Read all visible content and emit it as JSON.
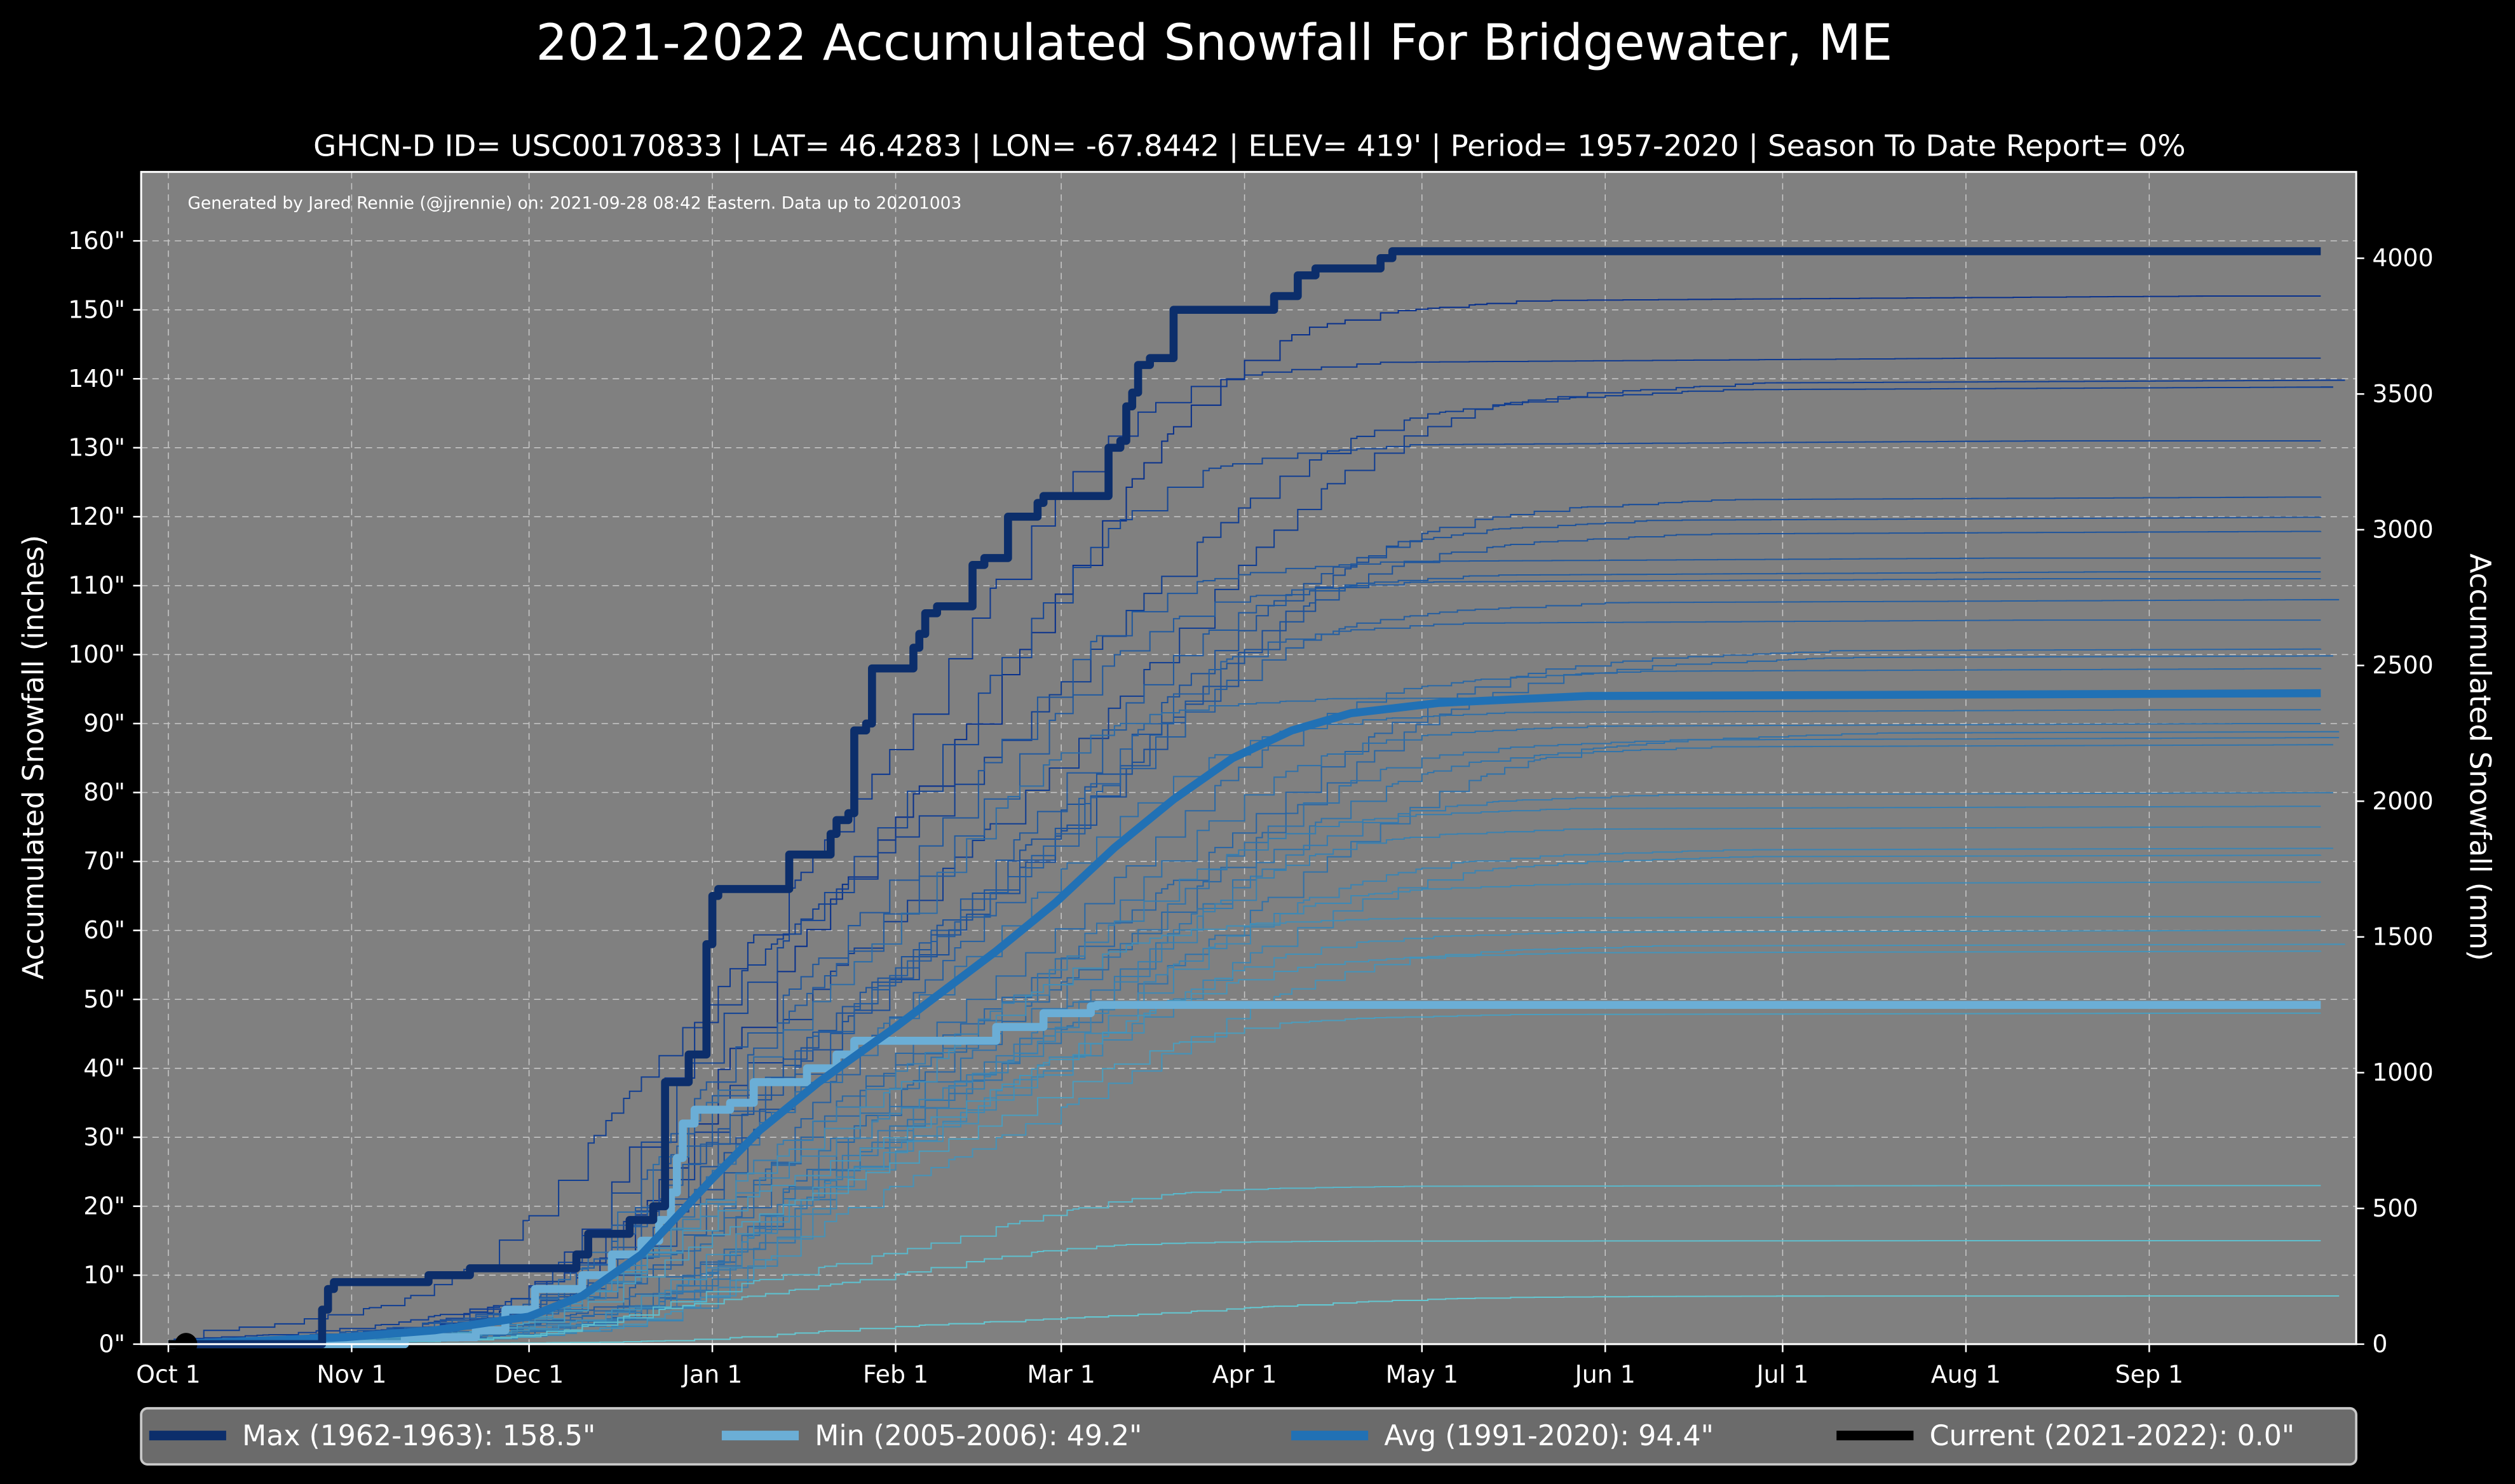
{
  "chart_data": {
    "type": "line",
    "title": "2021-2022 Accumulated Snowfall For Bridgewater, ME",
    "subtitle": "GHCN-D ID= USC00170833 | LAT= 46.4283 | LON= -67.8442 | ELEV= 419' | Period= 1957-2020 | Season To Date Report= 0%",
    "annotation": "Generated by Jared Rennie (@jjrennie) on: 2021-09-28 08:42 Eastern. Data up to 20201003",
    "ylabel": "Accumulated Snowfall (inches)",
    "ylabel_right": "Accumulated Snowfall (mm)",
    "x_unit": "days since Oct 1",
    "xlim": [
      -4.6,
      370
    ],
    "ylim": [
      0,
      170
    ],
    "ylim_right_mm": [
      0,
      4318
    ],
    "grid": true,
    "legend_position": "bottom",
    "x_ticks": [
      {
        "day": 0,
        "label": "Oct 1"
      },
      {
        "day": 31,
        "label": "Nov 1"
      },
      {
        "day": 61,
        "label": "Dec 1"
      },
      {
        "day": 92,
        "label": "Jan 1"
      },
      {
        "day": 123,
        "label": "Feb 1"
      },
      {
        "day": 151,
        "label": "Mar 1"
      },
      {
        "day": 182,
        "label": "Apr 1"
      },
      {
        "day": 212,
        "label": "May 1"
      },
      {
        "day": 243,
        "label": "Jun 1"
      },
      {
        "day": 273,
        "label": "Jul 1"
      },
      {
        "day": 304,
        "label": "Aug 1"
      },
      {
        "day": 335,
        "label": "Sep 1"
      }
    ],
    "y_ticks": [
      {
        "v": 0,
        "label": "0\""
      },
      {
        "v": 10,
        "label": "10\""
      },
      {
        "v": 20,
        "label": "20\""
      },
      {
        "v": 30,
        "label": "30\""
      },
      {
        "v": 40,
        "label": "40\""
      },
      {
        "v": 50,
        "label": "50\""
      },
      {
        "v": 60,
        "label": "60\""
      },
      {
        "v": 70,
        "label": "70\""
      },
      {
        "v": 80,
        "label": "80\""
      },
      {
        "v": 90,
        "label": "90\""
      },
      {
        "v": 100,
        "label": "100\""
      },
      {
        "v": 110,
        "label": "110\""
      },
      {
        "v": 120,
        "label": "120\""
      },
      {
        "v": 130,
        "label": "130\""
      },
      {
        "v": 140,
        "label": "140\""
      },
      {
        "v": 150,
        "label": "150\""
      },
      {
        "v": 160,
        "label": "160\""
      }
    ],
    "y_ticks_right": [
      {
        "mm": 0,
        "label": "0"
      },
      {
        "mm": 500,
        "label": "500"
      },
      {
        "mm": 1000,
        "label": "1000"
      },
      {
        "mm": 1500,
        "label": "1500"
      },
      {
        "mm": 2000,
        "label": "2000"
      },
      {
        "mm": 2500,
        "label": "2500"
      },
      {
        "mm": 3000,
        "label": "3000"
      },
      {
        "mm": 3500,
        "label": "3500"
      },
      {
        "mm": 4000,
        "label": "4000"
      }
    ],
    "series": [
      {
        "name": "Max (1962-1963):  158.5\"",
        "color": "#0c2e6b",
        "width": 5,
        "step": true,
        "points": [
          [
            0,
            0
          ],
          [
            25,
            0
          ],
          [
            26,
            5
          ],
          [
            27,
            8
          ],
          [
            28,
            9
          ],
          [
            43,
            9
          ],
          [
            44,
            10
          ],
          [
            50,
            10
          ],
          [
            51,
            11
          ],
          [
            68,
            11
          ],
          [
            69,
            13
          ],
          [
            71,
            16
          ],
          [
            76,
            16
          ],
          [
            78,
            18
          ],
          [
            82,
            20
          ],
          [
            83,
            20
          ],
          [
            84,
            38
          ],
          [
            87,
            38
          ],
          [
            88,
            42
          ],
          [
            90,
            42
          ],
          [
            91,
            58
          ],
          [
            92,
            65
          ],
          [
            93,
            66
          ],
          [
            104,
            66
          ],
          [
            105,
            71
          ],
          [
            111,
            71
          ],
          [
            112,
            74
          ],
          [
            113,
            76
          ],
          [
            115,
            77
          ],
          [
            116,
            89
          ],
          [
            118,
            90
          ],
          [
            119,
            98
          ],
          [
            125,
            98
          ],
          [
            126,
            101
          ],
          [
            127,
            103
          ],
          [
            128,
            106
          ],
          [
            130,
            107
          ],
          [
            135,
            107
          ],
          [
            136,
            113
          ],
          [
            138,
            114
          ],
          [
            141,
            114
          ],
          [
            142,
            120
          ],
          [
            146,
            120
          ],
          [
            147,
            122
          ],
          [
            148,
            123
          ],
          [
            158,
            123
          ],
          [
            159,
            130
          ],
          [
            161,
            131
          ],
          [
            162,
            136
          ],
          [
            163,
            138
          ],
          [
            164,
            142
          ],
          [
            166,
            143
          ],
          [
            169,
            143
          ],
          [
            170,
            150
          ],
          [
            186,
            150
          ],
          [
            187,
            152
          ],
          [
            190,
            152
          ],
          [
            191,
            155
          ],
          [
            194,
            156
          ],
          [
            203,
            156
          ],
          [
            205,
            157.5
          ],
          [
            207,
            158.5
          ],
          [
            364,
            158.5
          ]
        ]
      },
      {
        "name": "Min (2005-2006):   49.2\"",
        "color": "#6baed6",
        "width": 5,
        "step": true,
        "points": [
          [
            0,
            0
          ],
          [
            30,
            0
          ],
          [
            40,
            1
          ],
          [
            52,
            2
          ],
          [
            57,
            5
          ],
          [
            62,
            8
          ],
          [
            70,
            10
          ],
          [
            75,
            13
          ],
          [
            80,
            15
          ],
          [
            83,
            18
          ],
          [
            85,
            22
          ],
          [
            86,
            27
          ],
          [
            87,
            32
          ],
          [
            89,
            34
          ],
          [
            95,
            35
          ],
          [
            99,
            38
          ],
          [
            108,
            40
          ],
          [
            113,
            42
          ],
          [
            116,
            44
          ],
          [
            137,
            44
          ],
          [
            140,
            46
          ],
          [
            146,
            46
          ],
          [
            148,
            48
          ],
          [
            156,
            49
          ],
          [
            157,
            49.2
          ],
          [
            364,
            49.2
          ]
        ]
      },
      {
        "name": "Avg (1991-2020):   94.4\"",
        "color": "#2171b5",
        "width": 5,
        "step": false,
        "points": [
          [
            0,
            0
          ],
          [
            30,
            1
          ],
          [
            45,
            2
          ],
          [
            61,
            4
          ],
          [
            70,
            7
          ],
          [
            80,
            13
          ],
          [
            92,
            24
          ],
          [
            100,
            31
          ],
          [
            110,
            38
          ],
          [
            123,
            46
          ],
          [
            140,
            57
          ],
          [
            150,
            64
          ],
          [
            160,
            72
          ],
          [
            170,
            79
          ],
          [
            180,
            85
          ],
          [
            190,
            89
          ],
          [
            200,
            91.5
          ],
          [
            215,
            93
          ],
          [
            240,
            94
          ],
          [
            364,
            94.4
          ]
        ]
      },
      {
        "name": "Current (2021-2022): 0.0\"",
        "color": "#000000",
        "width": 5,
        "step": false,
        "points": [
          [
            0,
            0
          ],
          [
            3,
            0
          ]
        ]
      }
    ],
    "other_seasons_final_totals": [
      152,
      143,
      140,
      139,
      131,
      123,
      120,
      118,
      114,
      112,
      111,
      108,
      105,
      101,
      100,
      98,
      94,
      92,
      90,
      89,
      88,
      87,
      80,
      78,
      75,
      72,
      71,
      67,
      62,
      60,
      58,
      57,
      48,
      23,
      15,
      7
    ]
  }
}
